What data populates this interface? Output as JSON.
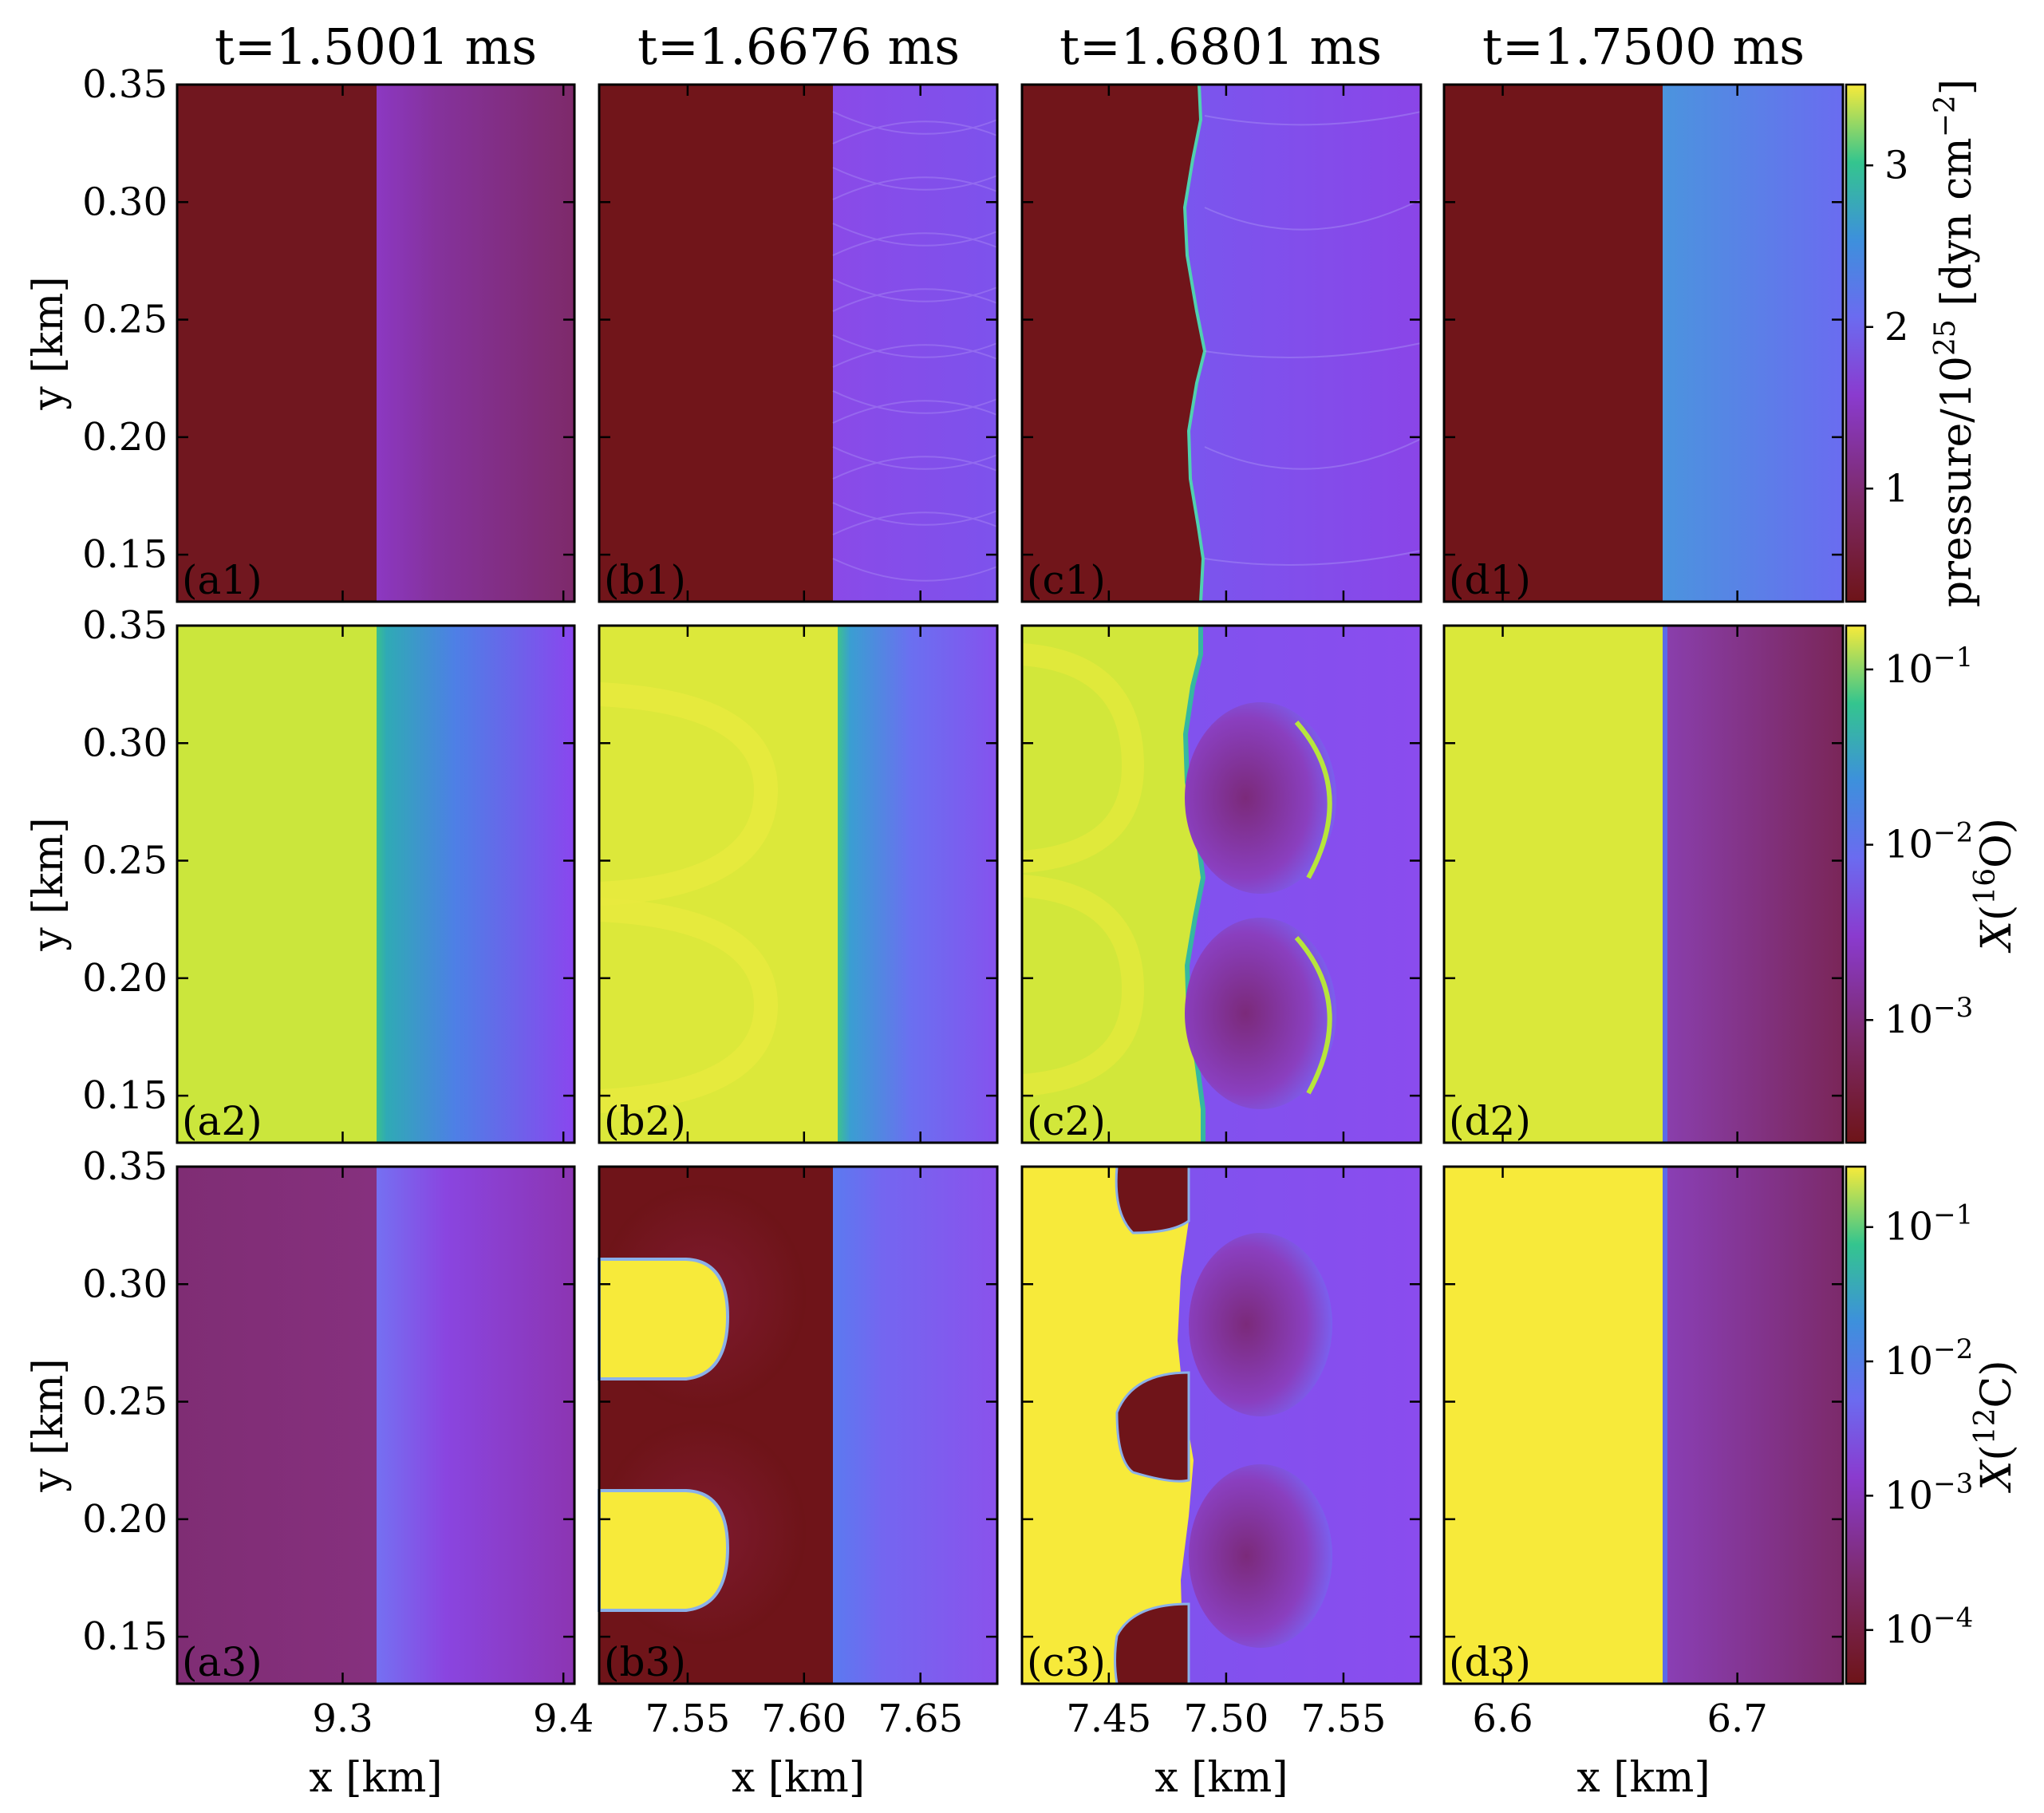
{
  "column_titles": [
    "t=1.5001 ms",
    "t=1.6676 ms",
    "t=1.6801 ms",
    "t=1.7500 ms"
  ],
  "xlabel": "x [km]",
  "ylabel": "y [km]",
  "colorbars": [
    {
      "label": "pressure/10^25 [dyn cm^-2]",
      "ticks": [
        "1",
        "2",
        "3"
      ]
    },
    {
      "label": "X(^16O)",
      "ticks": [
        "10^-1",
        "10^-2",
        "10^-3"
      ]
    },
    {
      "label": "X(^12C)",
      "ticks": [
        "10^-1",
        "10^-2",
        "10^-3",
        "10^-4"
      ]
    }
  ],
  "colors": {
    "dark_red": "#6e1418",
    "dark_red2": "#71171f",
    "magenta_purple": "#7d2a6a",
    "purple": "#8a3bcf",
    "violet": "#8a52e6",
    "blue_violet": "#6b6bf0",
    "blue": "#4f8ee3",
    "teal": "#2fb3b3",
    "green": "#3ec78a",
    "yellow_green": "#cde83a",
    "yellow": "#f7ea3a"
  },
  "chart_data": {
    "type": "heatmap",
    "layout": "3 rows x 4 columns of panels",
    "rows": [
      "pressure",
      "X(16O)",
      "X(12C)"
    ],
    "y_ticks": [
      "0.15",
      "0.20",
      "0.25",
      "0.30",
      "0.35"
    ],
    "ylim": [
      0.13,
      0.35
    ],
    "columns": [
      {
        "title": "t=1.5001 ms",
        "xlim": [
          9.225,
          9.405
        ],
        "x_ticks": [
          "9.3",
          "9.4"
        ],
        "front_x": 9.31,
        "panels": [
          "(a1)",
          "(a2)",
          "(a3)"
        ]
      },
      {
        "title": "t=1.6676 ms",
        "xlim": [
          7.512,
          7.683
        ],
        "x_ticks": [
          "7.55",
          "7.60",
          "7.65"
        ],
        "front_x": 7.615,
        "panels": [
          "(b1)",
          "(b2)",
          "(b3)"
        ]
      },
      {
        "title": "t=1.6801 ms",
        "xlim": [
          7.413,
          7.583
        ],
        "x_ticks": [
          "7.45",
          "7.50",
          "7.55"
        ],
        "front_x": 7.49,
        "panels": [
          "(c1)",
          "(c2)",
          "(c3)"
        ]
      },
      {
        "title": "t=1.7500 ms",
        "xlim": [
          6.575,
          6.745
        ],
        "x_ticks": [
          "6.6",
          "6.7"
        ],
        "front_x": 6.655,
        "panels": [
          "(d1)",
          "(d2)",
          "(d3)"
        ]
      }
    ],
    "colorbar_ranges": {
      "pressure": [
        0.3,
        3.5
      ],
      "X16O_log10": [
        -3.7,
        -0.75
      ],
      "X12C_log10": [
        -4.4,
        -0.55
      ]
    }
  }
}
